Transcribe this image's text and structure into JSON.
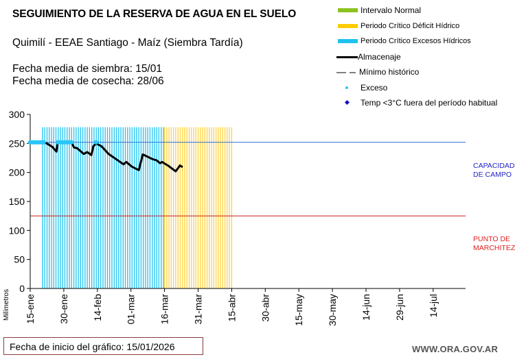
{
  "header": {
    "title": "SEGUIMIENTO DE LA RESERVA DE AGUA EN EL SUELO",
    "subtitle": "Quimilí - EEAE Santiago - Maíz (Siembra Tardía)",
    "sowing": "Fecha media de siembra: 15/01",
    "harvest": "Fecha media de cosecha: 28/06"
  },
  "legend": [
    {
      "type": "swatch",
      "label": "Intervalo Normal",
      "color": "#8dc21f"
    },
    {
      "type": "swatch",
      "label": "Periodo Crítico Déficit Hídrico",
      "color": "#ffcc00"
    },
    {
      "type": "swatch",
      "label": "Periodo Crítico Excesos Hídricos",
      "color": "#1ec3f0"
    },
    {
      "type": "line",
      "label": "Almacenaje",
      "color": "#000000"
    },
    {
      "type": "dashed",
      "label": "Mínimo histórico",
      "color": "#808080"
    },
    {
      "type": "dot",
      "label": "Exceso",
      "color": "#29c5f6"
    },
    {
      "type": "diamond",
      "label": "Temp <3°C fuera del período habitual",
      "color": "#1010d0"
    }
  ],
  "reference_labels": {
    "capacidad_line1": "CAPACIDAD",
    "capacidad_line2": "DE  CAMPO",
    "punto_line1": "PUNTO  DE",
    "punto_line2": "MARCHITEZ"
  },
  "footer": {
    "start_date_label": "Fecha de inicio del gráfico:  15/01/2026",
    "website": "WWW.ORA.GOV.AR"
  },
  "chart_data": {
    "type": "line",
    "title": "SEGUIMIENTO DE LA RESERVA DE AGUA EN EL SUELO",
    "xlabel": "",
    "ylabel": "Milímetros",
    "ylim": [
      0,
      300
    ],
    "yticks": [
      0,
      50,
      100,
      150,
      200,
      250,
      300
    ],
    "xlim_days": [
      0,
      195
    ],
    "xticks": [
      {
        "day": 0,
        "label": "15-ene"
      },
      {
        "day": 15,
        "label": "30-ene"
      },
      {
        "day": 30,
        "label": "14-feb"
      },
      {
        "day": 45,
        "label": "01-mar"
      },
      {
        "day": 60,
        "label": "16-mar"
      },
      {
        "day": 75,
        "label": "31-mar"
      },
      {
        "day": 90,
        "label": "15-abr"
      },
      {
        "day": 105,
        "label": "30-abr"
      },
      {
        "day": 120,
        "label": "15-may"
      },
      {
        "day": 135,
        "label": "30-may"
      },
      {
        "day": 150,
        "label": "14-jun"
      },
      {
        "day": 165,
        "label": "29-jun"
      },
      {
        "day": 180,
        "label": "14-jul"
      }
    ],
    "grid": false,
    "reference_lines": [
      {
        "name": "Capacidad de campo",
        "value": 252,
        "color": "#3a6fd0"
      },
      {
        "name": "Punto de marchitez",
        "value": 125,
        "color": "#c81e1e"
      }
    ],
    "bands": [
      {
        "name": "Periodo Crítico Excesos Hídricos",
        "from_day": 5.5,
        "to_day": 59.5,
        "top": 278,
        "color": "#1ec3f0"
      },
      {
        "name": "Periodo Crítico Déficit Hídrico",
        "from_day": 60,
        "to_day": 90.5,
        "top": 278,
        "color": "#ffd23f"
      }
    ],
    "series": [
      {
        "name": "Almacenaje",
        "color": "#000000",
        "points": [
          [
            0,
            252
          ],
          [
            6,
            252
          ],
          [
            7.4,
            250
          ],
          [
            9.9,
            244
          ],
          [
            11.7,
            236
          ],
          [
            12.3,
            251
          ],
          [
            18.4,
            252
          ],
          [
            19.6,
            243
          ],
          [
            20.9,
            242
          ],
          [
            23.9,
            232
          ],
          [
            25.5,
            235
          ],
          [
            27.3,
            230
          ],
          [
            28.2,
            245
          ],
          [
            29.4,
            250
          ],
          [
            31.9,
            245
          ],
          [
            35,
            232
          ],
          [
            41.7,
            214
          ],
          [
            42.9,
            218
          ],
          [
            45.4,
            210
          ],
          [
            48.5,
            204
          ],
          [
            50.3,
            231
          ],
          [
            54.6,
            223
          ],
          [
            56.4,
            221
          ],
          [
            58,
            216
          ],
          [
            58.9,
            218
          ],
          [
            61.9,
            211
          ],
          [
            65,
            202
          ],
          [
            66.9,
            212
          ],
          [
            68.1,
            209
          ]
        ]
      },
      {
        "name": "Exceso",
        "color": "#29c5f6",
        "points": [
          [
            0,
            252
          ],
          [
            1,
            252
          ],
          [
            2,
            252
          ],
          [
            3,
            252
          ],
          [
            4,
            252
          ],
          [
            5,
            252
          ],
          [
            6,
            252
          ],
          [
            12.3,
            252
          ],
          [
            13.3,
            252
          ],
          [
            14.3,
            252
          ],
          [
            15.3,
            252
          ],
          [
            16.3,
            252
          ],
          [
            17.3,
            252
          ],
          [
            18.4,
            252
          ],
          [
            29.4,
            252
          ]
        ]
      }
    ]
  }
}
